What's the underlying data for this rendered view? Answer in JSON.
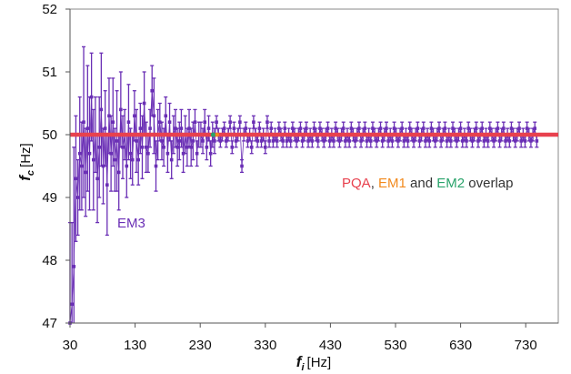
{
  "chart_data": {
    "type": "scatter",
    "xlabel": {
      "symbol": "f",
      "subscript": "i",
      "unit": "[Hz]"
    },
    "ylabel": {
      "symbol": "f",
      "subscript": "c",
      "unit": "[Hz]"
    },
    "xlim": [
      30,
      780
    ],
    "ylim": [
      47,
      52
    ],
    "xticks": [
      "30",
      "130",
      "230",
      "330",
      "430",
      "530",
      "630",
      "730"
    ],
    "yticks": [
      "47",
      "48",
      "49",
      "50",
      "51",
      "52"
    ],
    "grid": false,
    "colors": {
      "PQA": "#e8414e",
      "EM1": "#f28a1e",
      "EM2": "#29a36b",
      "EM3": "#6a2fb5"
    },
    "annotations": {
      "overlap": [
        {
          "text": "PQA",
          "color": "#e8414e"
        },
        {
          "text": ", ",
          "color": "#333333"
        },
        {
          "text": "EM1",
          "color": "#f28a1e"
        },
        {
          "text": " and ",
          "color": "#333333"
        },
        {
          "text": "EM2",
          "color": "#29a36b"
        },
        {
          "text": " overlap",
          "color": "#333333"
        }
      ],
      "em3_label": "EM3"
    },
    "series": [
      {
        "name": "PQA",
        "type": "line",
        "x_range": [
          30,
          780
        ],
        "value": 50.0
      },
      {
        "name": "EM3",
        "type": "errorbar",
        "x_start": 30,
        "x_step": 3,
        "points": [
          [
            47.0,
            1.6
          ],
          [
            47.3,
            1.3
          ],
          [
            47.9,
            1.9
          ],
          [
            49.3,
            1.0
          ],
          [
            49.0,
            0.6
          ],
          [
            49.7,
            0.9
          ],
          [
            49.5,
            0.7
          ],
          [
            50.2,
            1.2
          ],
          [
            49.4,
            0.7
          ],
          [
            50.1,
            1.0
          ],
          [
            49.7,
            0.9
          ],
          [
            50.6,
            0.7
          ],
          [
            49.6,
            0.8
          ],
          [
            50.0,
            0.6
          ],
          [
            49.3,
            0.7
          ],
          [
            49.8,
            0.8
          ],
          [
            50.4,
            0.9
          ],
          [
            49.5,
            0.6
          ],
          [
            50.1,
            0.6
          ],
          [
            49.2,
            0.8
          ],
          [
            50.3,
            0.6
          ],
          [
            49.7,
            0.6
          ],
          [
            50.2,
            0.7
          ],
          [
            49.6,
            0.5
          ],
          [
            49.9,
            0.8
          ],
          [
            49.4,
            0.6
          ],
          [
            50.4,
            0.6
          ],
          [
            49.8,
            0.5
          ],
          [
            50.0,
            0.4
          ],
          [
            49.5,
            0.5
          ],
          [
            50.2,
            0.6
          ],
          [
            49.7,
            0.4
          ],
          [
            49.6,
            0.4
          ],
          [
            50.3,
            0.4
          ],
          [
            49.9,
            0.5
          ],
          [
            49.6,
            0.4
          ],
          [
            50.1,
            0.4
          ],
          [
            49.8,
            0.5
          ],
          [
            50.5,
            0.5
          ],
          [
            49.8,
            0.4
          ],
          [
            49.7,
            0.3
          ],
          [
            50.1,
            0.3
          ],
          [
            50.7,
            0.4
          ],
          [
            50.3,
            0.6
          ],
          [
            49.5,
            0.4
          ],
          [
            50.0,
            0.4
          ],
          [
            50.2,
            0.3
          ],
          [
            49.9,
            0.3
          ],
          [
            49.8,
            0.3
          ],
          [
            50.3,
            0.3
          ],
          [
            49.7,
            0.3
          ],
          [
            50.2,
            0.3
          ],
          [
            49.6,
            0.3
          ],
          [
            50.0,
            0.3
          ],
          [
            50.1,
            0.3
          ],
          [
            49.8,
            0.3
          ],
          [
            49.9,
            0.3
          ],
          [
            50.1,
            0.3
          ],
          [
            49.7,
            0.3
          ],
          [
            50.0,
            0.3
          ],
          [
            49.8,
            0.3
          ],
          [
            50.1,
            0.3
          ],
          [
            49.8,
            0.3
          ],
          [
            49.9,
            0.3
          ],
          [
            50.2,
            0.2
          ],
          [
            49.7,
            0.2
          ],
          [
            50.0,
            0.2
          ],
          [
            50.0,
            0.2
          ],
          [
            49.9,
            0.2
          ],
          [
            50.2,
            0.2
          ],
          [
            49.8,
            0.2
          ],
          [
            50.1,
            0.2
          ],
          [
            49.7,
            0.2
          ],
          [
            50.0,
            0.2
          ],
          [
            49.9,
            0.2
          ],
          [
            50.2,
            0.1
          ],
          [
            50.0,
            0.1
          ],
          [
            49.9,
            0.1
          ],
          [
            50.0,
            0.1
          ],
          [
            50.1,
            0.1
          ],
          [
            49.9,
            0.1
          ],
          [
            50.0,
            0.1
          ],
          [
            50.2,
            0.1
          ],
          [
            49.8,
            0.1
          ],
          [
            50.1,
            0.1
          ],
          [
            49.9,
            0.1
          ],
          [
            50.0,
            0.1
          ],
          [
            50.2,
            0.1
          ],
          [
            49.5,
            0.1
          ],
          [
            50.0,
            0.1
          ],
          [
            50.1,
            0.1
          ],
          [
            49.9,
            0.1
          ],
          [
            50.0,
            0.1
          ],
          [
            49.8,
            0.1
          ],
          [
            50.2,
            0.1
          ],
          [
            50.0,
            0.1
          ],
          [
            49.9,
            0.1
          ],
          [
            50.1,
            0.1
          ],
          [
            49.9,
            0.1
          ],
          [
            50.0,
            0.1
          ],
          [
            49.8,
            0.1
          ],
          [
            50.2,
            0.1
          ],
          [
            49.9,
            0.1
          ],
          [
            50.1,
            0.1
          ],
          [
            49.9,
            0.1
          ],
          [
            50.0,
            0.1
          ],
          [
            49.9,
            0.1
          ],
          [
            50.1,
            0.1
          ],
          [
            50.0,
            0.1
          ],
          [
            49.9,
            0.1
          ],
          [
            50.1,
            0.1
          ],
          [
            49.9,
            0.1
          ],
          [
            50.0,
            0.1
          ],
          [
            49.9,
            0.1
          ],
          [
            50.1,
            0.1
          ],
          [
            50.0,
            0.1
          ],
          [
            49.9,
            0.1
          ],
          [
            50.0,
            0.1
          ],
          [
            50.1,
            0.1
          ],
          [
            49.9,
            0.1
          ],
          [
            50.0,
            0.1
          ],
          [
            50.1,
            0.1
          ],
          [
            49.9,
            0.1
          ],
          [
            50.0,
            0.1
          ],
          [
            49.9,
            0.1
          ],
          [
            50.1,
            0.1
          ],
          [
            50.0,
            0.1
          ],
          [
            49.9,
            0.1
          ],
          [
            50.1,
            0.1
          ],
          [
            50.0,
            0.1
          ],
          [
            49.9,
            0.1
          ],
          [
            50.0,
            0.1
          ],
          [
            50.1,
            0.1
          ],
          [
            49.9,
            0.1
          ],
          [
            50.0,
            0.1
          ],
          [
            49.9,
            0.1
          ],
          [
            50.1,
            0.1
          ],
          [
            50.0,
            0.1
          ],
          [
            49.9,
            0.1
          ],
          [
            50.0,
            0.1
          ],
          [
            50.1,
            0.1
          ],
          [
            49.9,
            0.1
          ],
          [
            50.0,
            0.1
          ],
          [
            49.9,
            0.1
          ],
          [
            50.1,
            0.1
          ],
          [
            50.0,
            0.1
          ],
          [
            49.9,
            0.1
          ],
          [
            50.0,
            0.1
          ],
          [
            50.1,
            0.1
          ],
          [
            49.9,
            0.1
          ],
          [
            50.0,
            0.1
          ],
          [
            50.1,
            0.1
          ],
          [
            49.9,
            0.1
          ],
          [
            50.0,
            0.1
          ],
          [
            49.9,
            0.1
          ],
          [
            50.1,
            0.1
          ],
          [
            50.0,
            0.1
          ],
          [
            49.9,
            0.1
          ],
          [
            50.0,
            0.1
          ],
          [
            50.1,
            0.1
          ],
          [
            49.9,
            0.1
          ],
          [
            50.0,
            0.1
          ],
          [
            50.1,
            0.1
          ],
          [
            49.9,
            0.1
          ],
          [
            50.0,
            0.1
          ],
          [
            49.9,
            0.1
          ],
          [
            50.1,
            0.1
          ],
          [
            50.0,
            0.1
          ],
          [
            49.9,
            0.1
          ],
          [
            50.0,
            0.1
          ],
          [
            50.1,
            0.1
          ],
          [
            49.9,
            0.1
          ],
          [
            50.0,
            0.1
          ],
          [
            49.9,
            0.1
          ],
          [
            50.1,
            0.1
          ],
          [
            50.0,
            0.1
          ],
          [
            49.9,
            0.1
          ],
          [
            50.0,
            0.1
          ],
          [
            50.1,
            0.1
          ],
          [
            49.9,
            0.1
          ],
          [
            50.0,
            0.1
          ],
          [
            50.1,
            0.1
          ],
          [
            49.9,
            0.1
          ],
          [
            50.0,
            0.1
          ],
          [
            49.9,
            0.1
          ],
          [
            50.1,
            0.1
          ],
          [
            50.0,
            0.1
          ],
          [
            49.9,
            0.1
          ],
          [
            50.0,
            0.1
          ],
          [
            50.1,
            0.1
          ],
          [
            49.9,
            0.1
          ],
          [
            50.0,
            0.1
          ],
          [
            50.1,
            0.1
          ],
          [
            49.9,
            0.1
          ],
          [
            50.0,
            0.1
          ],
          [
            49.9,
            0.1
          ],
          [
            50.1,
            0.1
          ],
          [
            50.0,
            0.1
          ],
          [
            49.9,
            0.1
          ],
          [
            50.0,
            0.1
          ],
          [
            50.1,
            0.1
          ],
          [
            49.9,
            0.1
          ],
          [
            50.0,
            0.1
          ],
          [
            49.9,
            0.1
          ],
          [
            50.1,
            0.1
          ],
          [
            50.0,
            0.1
          ],
          [
            49.9,
            0.1
          ],
          [
            50.0,
            0.1
          ],
          [
            50.1,
            0.1
          ],
          [
            49.9,
            0.1
          ],
          [
            50.0,
            0.1
          ],
          [
            50.1,
            0.1
          ],
          [
            49.9,
            0.1
          ],
          [
            50.0,
            0.1
          ],
          [
            49.9,
            0.1
          ],
          [
            50.1,
            0.1
          ],
          [
            50.0,
            0.1
          ],
          [
            49.9,
            0.1
          ],
          [
            50.0,
            0.1
          ],
          [
            50.1,
            0.1
          ],
          [
            49.9,
            0.1
          ],
          [
            50.0,
            0.1
          ],
          [
            50.1,
            0.1
          ],
          [
            49.9,
            0.1
          ],
          [
            50.0,
            0.1
          ],
          [
            49.9,
            0.1
          ],
          [
            50.1,
            0.1
          ],
          [
            50.0,
            0.1
          ],
          [
            49.9,
            0.1
          ],
          [
            50.0,
            0.1
          ],
          [
            50.1,
            0.1
          ],
          [
            49.9,
            0.1
          ],
          [
            50.0,
            0.1
          ],
          [
            49.9,
            0.1
          ],
          [
            50.1,
            0.1
          ],
          [
            50.0,
            0.1
          ],
          [
            49.9,
            0.1
          ],
          [
            50.0,
            0.1
          ],
          [
            50.1,
            0.1
          ],
          [
            49.9,
            0.1
          ]
        ]
      }
    ]
  }
}
